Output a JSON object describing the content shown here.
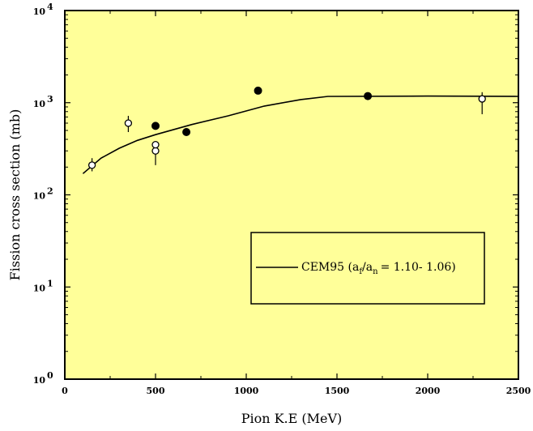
{
  "chart_data": {
    "type": "scatter",
    "xlabel": "Pion K.E (MeV)",
    "ylabel": "Fission cross section (mb)",
    "xlim": [
      0,
      2500
    ],
    "ylim": [
      1,
      10000
    ],
    "yscale": "log",
    "xticks": [
      0,
      500,
      1000,
      1500,
      2000,
      2500
    ],
    "xtick_labels": [
      "0",
      "500",
      "1000",
      "1500",
      "2000",
      "2500"
    ],
    "yticks": [
      1,
      10,
      100,
      1000,
      10000
    ],
    "ytick_mantissa": [
      "10",
      "10",
      "10",
      "10",
      "10"
    ],
    "ytick_exponent": [
      "0",
      "1",
      "2",
      "3",
      "4"
    ],
    "background_color": "#ffff99",
    "legend": {
      "position": "center-right",
      "prefix": "CEM95 (a",
      "sub1": "f",
      "mid": "/a",
      "sub2": "n",
      "suffix": "= 1.10- 1.06)"
    },
    "series": [
      {
        "marker": "filled-circle",
        "points": [
          {
            "x": 500,
            "y": 560
          },
          {
            "x": 670,
            "y": 480
          },
          {
            "x": 1065,
            "y": 1350
          },
          {
            "x": 1670,
            "y": 1180
          }
        ]
      },
      {
        "marker": "open-circle",
        "points": [
          {
            "x": 150,
            "y": 210,
            "err_lo": 30,
            "err_hi": 40
          },
          {
            "x": 350,
            "y": 600,
            "err_lo": 120,
            "err_hi": 120
          },
          {
            "x": 500,
            "y": 300,
            "err_lo": 90,
            "err_hi": 50
          },
          {
            "x": 500,
            "y": 350,
            "err_lo": 20,
            "err_hi": 20
          },
          {
            "x": 2300,
            "y": 1100,
            "err_lo": 350,
            "err_hi": 200
          }
        ]
      },
      {
        "marker": "line",
        "points": [
          {
            "x": 100,
            "y": 170
          },
          {
            "x": 200,
            "y": 250
          },
          {
            "x": 300,
            "y": 320
          },
          {
            "x": 400,
            "y": 390
          },
          {
            "x": 500,
            "y": 450
          },
          {
            "x": 700,
            "y": 580
          },
          {
            "x": 900,
            "y": 720
          },
          {
            "x": 1100,
            "y": 920
          },
          {
            "x": 1300,
            "y": 1080
          },
          {
            "x": 1450,
            "y": 1170
          },
          {
            "x": 2000,
            "y": 1180
          },
          {
            "x": 2500,
            "y": 1170
          }
        ]
      }
    ]
  }
}
